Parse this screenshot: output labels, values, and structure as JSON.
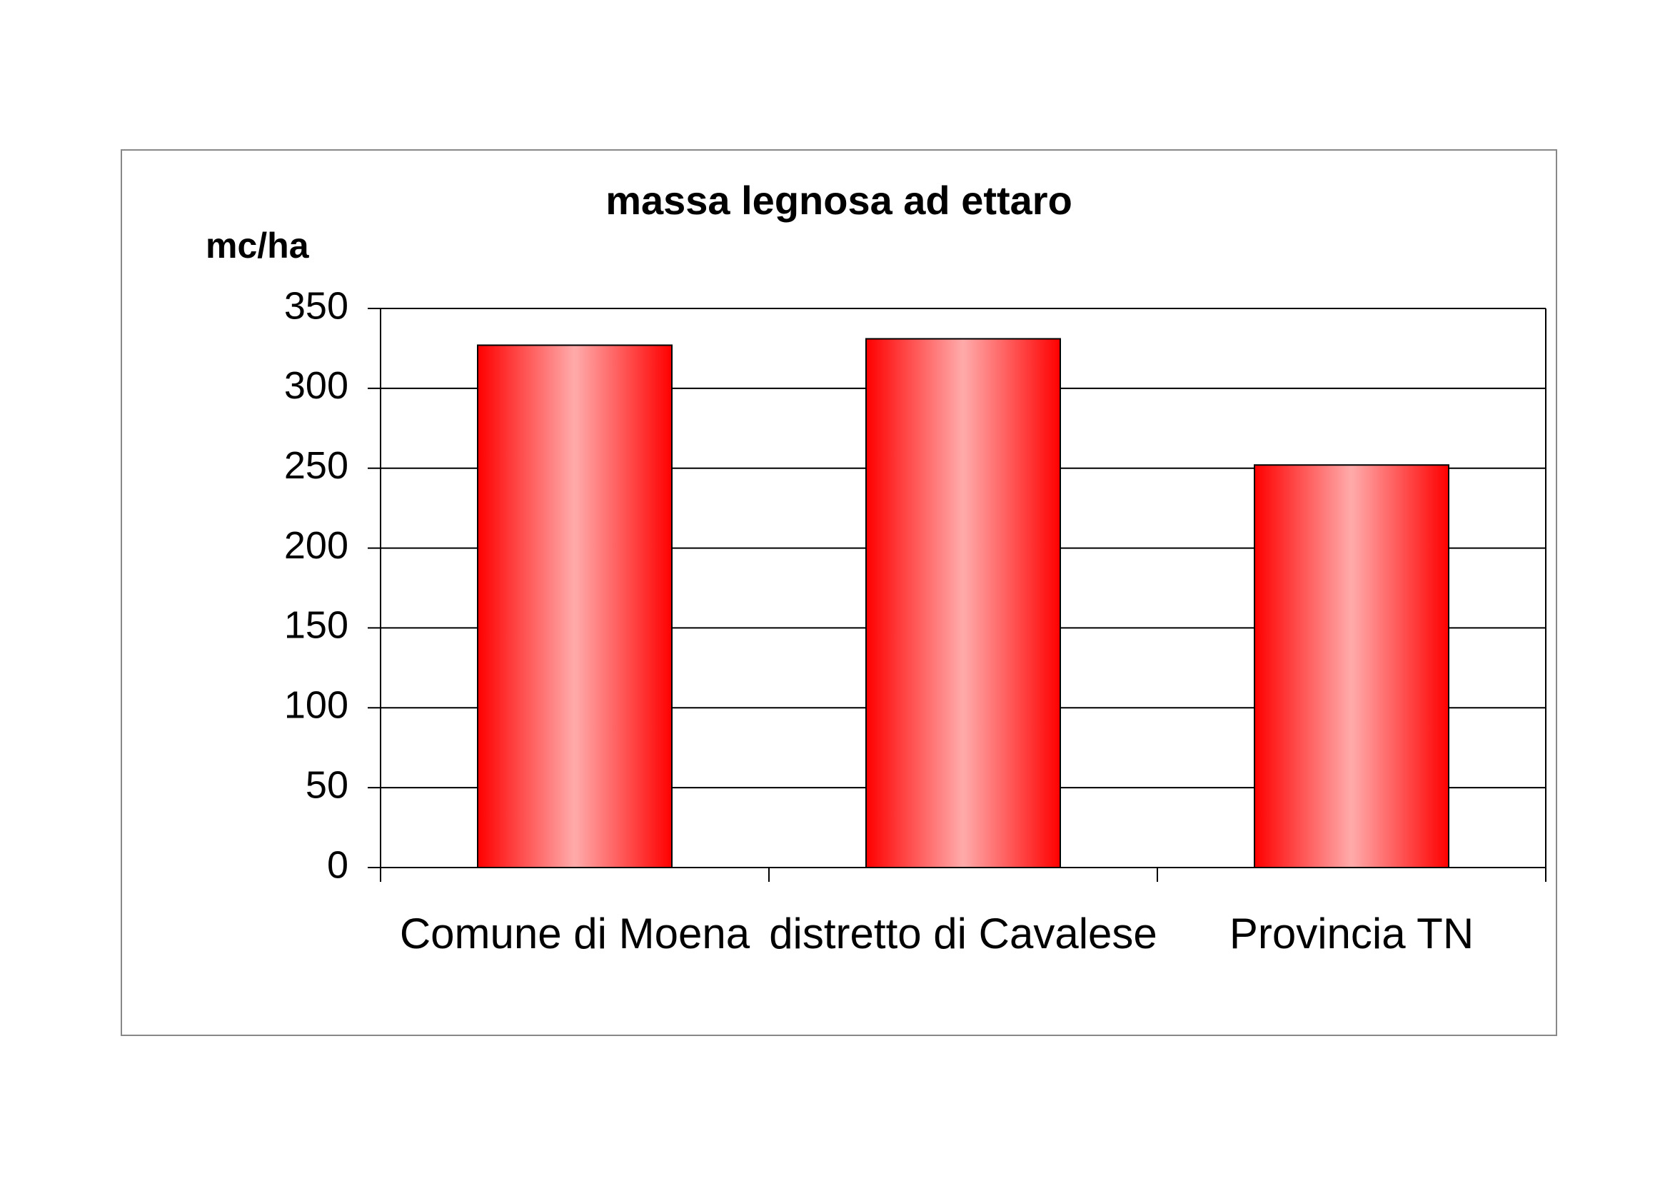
{
  "chart_data": {
    "type": "bar",
    "title": "massa legnosa ad ettaro",
    "y_label": "mc/ha",
    "categories": [
      "Comune di Moena",
      "distretto di Cavalese",
      "Provincia TN"
    ],
    "values": [
      327,
      331,
      252
    ],
    "color": "#ff0000",
    "ylim": [
      0,
      350
    ],
    "yticks": [
      0,
      50,
      100,
      150,
      200,
      250,
      300,
      350
    ],
    "grid": true
  }
}
